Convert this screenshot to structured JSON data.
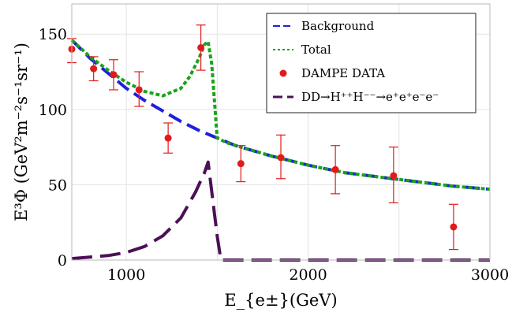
{
  "chart_data": {
    "type": "line",
    "title": "",
    "xlabel": "E_{e±}(GeV)",
    "ylabel": "E³Φ (GeV²m⁻²s⁻¹sr⁻¹)",
    "xlim": [
      700,
      3000
    ],
    "ylim": [
      0,
      170
    ],
    "xticks": [
      1000,
      2000,
      3000
    ],
    "yticks": [
      0,
      50,
      100,
      150
    ],
    "grid": true,
    "legend": "top-right",
    "series": [
      {
        "name": "Background",
        "style": "dashed",
        "color": "#1f1fdc",
        "x": [
          700,
          800,
          900,
          1000,
          1100,
          1200,
          1300,
          1400,
          1500,
          1600,
          1800,
          2000,
          2200,
          2400,
          2600,
          2800,
          3000
        ],
        "y": [
          146,
          134,
          124,
          114,
          106,
          99,
          92,
          86,
          81,
          76,
          69,
          63,
          58,
          55,
          52,
          49,
          47
        ]
      },
      {
        "name": "Total",
        "style": "dotted",
        "color": "#1aa31a",
        "x": [
          700,
          800,
          900,
          1000,
          1100,
          1200,
          1300,
          1350,
          1400,
          1430,
          1450,
          1470,
          1500,
          1550,
          1600,
          1800,
          2000,
          2200,
          2400,
          2600,
          2800,
          3000
        ],
        "y": [
          146,
          135,
          126,
          118,
          112,
          109,
          114,
          122,
          134,
          143,
          145,
          130,
          81,
          78,
          76,
          69,
          63,
          58,
          55,
          52,
          49,
          47
        ]
      },
      {
        "name": "DAMPE DATA",
        "style": "points",
        "color": "#e31a1a",
        "x": [
          700,
          820,
          930,
          1070,
          1230,
          1410,
          1630,
          1850,
          2150,
          2470,
          2800
        ],
        "y": [
          140,
          127,
          123,
          113,
          81,
          141,
          64,
          68,
          60,
          56,
          22
        ],
        "err_low": [
          9,
          8,
          10,
          11,
          10,
          15,
          12,
          14,
          16,
          18,
          15
        ],
        "err_high": [
          7,
          8,
          10,
          12,
          10,
          15,
          12,
          15,
          16,
          19,
          15
        ]
      },
      {
        "name": "DD→H⁺⁺H⁻⁻→e⁺e⁺e⁻e⁻",
        "style": "long-dashed",
        "color": "#4a1254",
        "x": [
          700,
          900,
          1000,
          1100,
          1200,
          1300,
          1380,
          1430,
          1450,
          1500,
          1520,
          2000,
          3000
        ],
        "y": [
          1,
          3,
          5,
          9,
          16,
          28,
          45,
          58,
          65,
          16,
          0,
          0,
          0
        ]
      }
    ]
  }
}
